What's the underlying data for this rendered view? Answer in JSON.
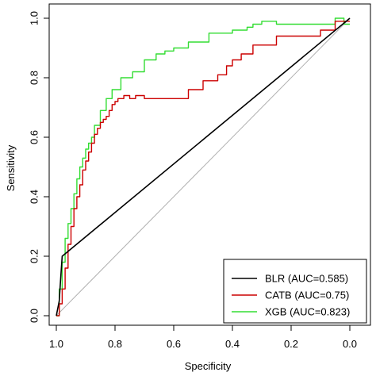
{
  "chart_data": {
    "type": "line",
    "title": "",
    "xlabel": "Specificity",
    "ylabel": "Sensitivity",
    "xlim": [
      1.0,
      0.0
    ],
    "ylim": [
      0.0,
      1.0
    ],
    "x_ticks": [
      "1.0",
      "0.8",
      "0.6",
      "0.4",
      "0.2",
      "0.0"
    ],
    "x_tick_values": [
      1.0,
      0.8,
      0.6,
      0.4,
      0.2,
      0.0
    ],
    "y_ticks": [
      "0.0",
      "0.2",
      "0.4",
      "0.6",
      "0.8",
      "1.0"
    ],
    "y_tick_values": [
      0.0,
      0.2,
      0.4,
      0.6,
      0.8,
      1.0
    ],
    "grid": false,
    "legend_position": "bottom-right",
    "reference_line": {
      "x": [
        1.0,
        0.0
      ],
      "y": [
        0.0,
        1.0
      ],
      "color": "#b0b0b0"
    },
    "series": [
      {
        "name": "BLR (AUC=0.585)",
        "color": "#000000",
        "x": [
          1.0,
          0.99,
          0.985,
          0.98,
          0.0
        ],
        "y": [
          0.0,
          0.05,
          0.13,
          0.2,
          1.0
        ]
      },
      {
        "name": "CATB (AUC=0.75)",
        "color": "#cc0000",
        "x": [
          1.0,
          0.99,
          0.99,
          0.98,
          0.98,
          0.97,
          0.97,
          0.96,
          0.96,
          0.95,
          0.95,
          0.94,
          0.94,
          0.93,
          0.93,
          0.92,
          0.92,
          0.91,
          0.91,
          0.9,
          0.9,
          0.89,
          0.89,
          0.88,
          0.88,
          0.87,
          0.87,
          0.86,
          0.86,
          0.85,
          0.85,
          0.84,
          0.84,
          0.83,
          0.83,
          0.82,
          0.82,
          0.81,
          0.81,
          0.8,
          0.8,
          0.79,
          0.79,
          0.77,
          0.77,
          0.75,
          0.75,
          0.73,
          0.73,
          0.7,
          0.7,
          0.55,
          0.55,
          0.5,
          0.5,
          0.45,
          0.45,
          0.42,
          0.42,
          0.4,
          0.4,
          0.37,
          0.37,
          0.33,
          0.33,
          0.25,
          0.25,
          0.1,
          0.1,
          0.05,
          0.05,
          0.0
        ],
        "y": [
          0.0,
          0.0,
          0.04,
          0.04,
          0.09,
          0.09,
          0.16,
          0.16,
          0.24,
          0.24,
          0.3,
          0.3,
          0.36,
          0.36,
          0.4,
          0.4,
          0.44,
          0.44,
          0.49,
          0.49,
          0.52,
          0.52,
          0.55,
          0.55,
          0.58,
          0.58,
          0.61,
          0.61,
          0.63,
          0.63,
          0.65,
          0.65,
          0.66,
          0.66,
          0.67,
          0.67,
          0.69,
          0.69,
          0.71,
          0.71,
          0.72,
          0.72,
          0.73,
          0.73,
          0.74,
          0.74,
          0.73,
          0.73,
          0.74,
          0.74,
          0.73,
          0.73,
          0.76,
          0.76,
          0.79,
          0.79,
          0.81,
          0.81,
          0.84,
          0.84,
          0.86,
          0.86,
          0.88,
          0.88,
          0.91,
          0.91,
          0.94,
          0.94,
          0.96,
          0.96,
          0.99,
          0.99
        ]
      },
      {
        "name": "XGB (AUC=0.823)",
        "color": "#33dd33",
        "x": [
          1.0,
          0.99,
          0.99,
          0.98,
          0.98,
          0.97,
          0.97,
          0.96,
          0.96,
          0.95,
          0.95,
          0.94,
          0.94,
          0.93,
          0.93,
          0.92,
          0.92,
          0.91,
          0.91,
          0.9,
          0.9,
          0.89,
          0.89,
          0.88,
          0.88,
          0.87,
          0.87,
          0.85,
          0.85,
          0.83,
          0.83,
          0.81,
          0.81,
          0.78,
          0.78,
          0.74,
          0.74,
          0.7,
          0.7,
          0.66,
          0.66,
          0.63,
          0.63,
          0.6,
          0.6,
          0.55,
          0.55,
          0.48,
          0.48,
          0.4,
          0.4,
          0.35,
          0.35,
          0.33,
          0.33,
          0.3,
          0.3,
          0.25,
          0.25,
          0.05,
          0.05,
          0.02,
          0.02,
          0.0
        ],
        "y": [
          0.0,
          0.0,
          0.09,
          0.09,
          0.18,
          0.18,
          0.26,
          0.26,
          0.31,
          0.31,
          0.36,
          0.36,
          0.41,
          0.41,
          0.46,
          0.46,
          0.5,
          0.5,
          0.53,
          0.53,
          0.56,
          0.56,
          0.58,
          0.58,
          0.6,
          0.6,
          0.64,
          0.64,
          0.69,
          0.69,
          0.73,
          0.73,
          0.76,
          0.76,
          0.8,
          0.8,
          0.82,
          0.82,
          0.86,
          0.86,
          0.88,
          0.88,
          0.89,
          0.89,
          0.9,
          0.9,
          0.92,
          0.92,
          0.95,
          0.95,
          0.96,
          0.96,
          0.97,
          0.97,
          0.98,
          0.98,
          0.99,
          0.99,
          0.98,
          0.98,
          1.0,
          1.0,
          0.98,
          0.98
        ]
      }
    ]
  }
}
